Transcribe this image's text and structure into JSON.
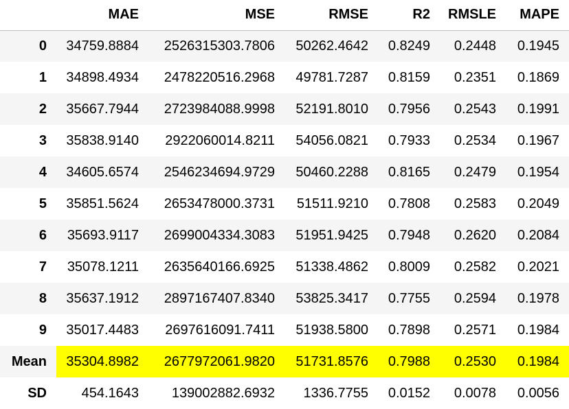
{
  "table": {
    "index_header": "",
    "columns": [
      "MAE",
      "MSE",
      "RMSE",
      "R2",
      "RMSLE",
      "MAPE"
    ],
    "highlight_color": "#ffff00",
    "rows": [
      {
        "index": "0",
        "values": [
          "34759.8884",
          "2526315303.7806",
          "50262.4642",
          "0.8249",
          "0.2448",
          "0.1945"
        ]
      },
      {
        "index": "1",
        "values": [
          "34898.4934",
          "2478220516.2968",
          "49781.7287",
          "0.8159",
          "0.2351",
          "0.1869"
        ]
      },
      {
        "index": "2",
        "values": [
          "35667.7944",
          "2723984088.9998",
          "52191.8010",
          "0.7956",
          "0.2543",
          "0.1991"
        ]
      },
      {
        "index": "3",
        "values": [
          "35838.9140",
          "2922060014.8211",
          "54056.0821",
          "0.7933",
          "0.2534",
          "0.1967"
        ]
      },
      {
        "index": "4",
        "values": [
          "34605.6574",
          "2546234694.9729",
          "50460.2288",
          "0.8165",
          "0.2479",
          "0.1954"
        ]
      },
      {
        "index": "5",
        "values": [
          "35851.5624",
          "2653478000.3731",
          "51511.9210",
          "0.7808",
          "0.2583",
          "0.2049"
        ]
      },
      {
        "index": "6",
        "values": [
          "35693.9117",
          "2699004334.3083",
          "51951.9425",
          "0.7948",
          "0.2620",
          "0.2084"
        ]
      },
      {
        "index": "7",
        "values": [
          "35078.1211",
          "2635640166.6925",
          "51338.4862",
          "0.8009",
          "0.2582",
          "0.2021"
        ]
      },
      {
        "index": "8",
        "values": [
          "35637.1912",
          "2897167407.8340",
          "53825.3417",
          "0.7755",
          "0.2594",
          "0.1978"
        ]
      },
      {
        "index": "9",
        "values": [
          "35017.4483",
          "2697616091.7411",
          "51938.5800",
          "0.7898",
          "0.2571",
          "0.1984"
        ]
      },
      {
        "index": "Mean",
        "values": [
          "35304.8982",
          "2677972061.9820",
          "51731.8576",
          "0.7988",
          "0.2530",
          "0.1984"
        ],
        "highlighted": true
      },
      {
        "index": "SD",
        "values": [
          "454.1643",
          "139002882.6932",
          "1336.7755",
          "0.0152",
          "0.0078",
          "0.0056"
        ]
      }
    ]
  }
}
